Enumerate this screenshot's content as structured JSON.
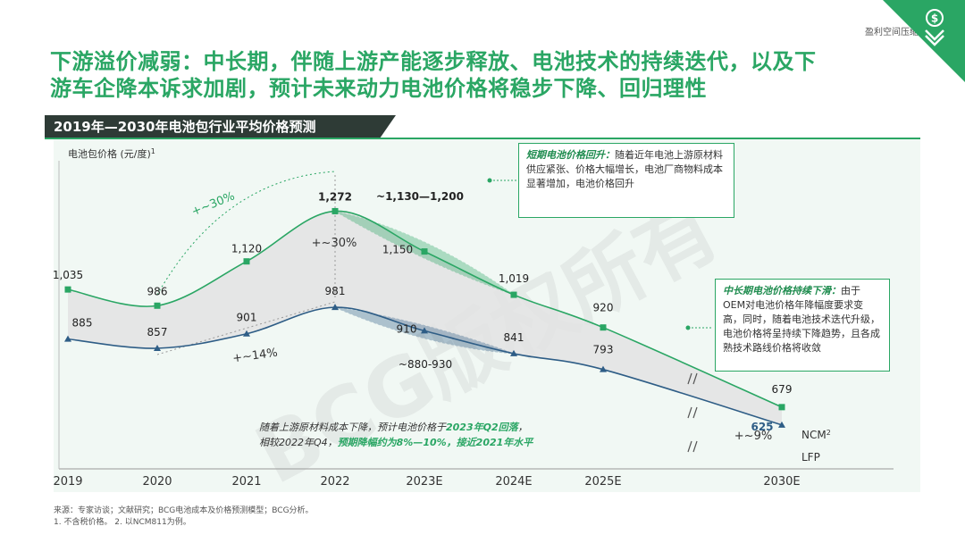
{
  "brand": "盈利空间压缩",
  "headline_line1": "下游溢价减弱：中长期，伴随上游产能逐步释放、电池技术的持续迭代，以及下",
  "headline_line2": "游车企降本诉求加剧，预计未来动力电池价格将稳步下降、回归理性",
  "section_title": "2019年—2030年电池包行业平均价格预测",
  "watermark": "BCG版权所有",
  "colors": {
    "green": "#2aa664",
    "navy": "#2e5d86",
    "dark": "#2e3b36",
    "band": "#e3e3e3"
  },
  "chart_data": {
    "type": "line",
    "ylabel": "电池包价格 (元/度)",
    "ylabel_sup": "1",
    "x": [
      "2019",
      "2020",
      "2021",
      "2022",
      "2023E",
      "2024E",
      "2025E",
      "2030E"
    ],
    "series": [
      {
        "name": "NCM",
        "sup": "2",
        "values": [
          1035,
          986,
          1120,
          1272,
          1150,
          1019,
          920,
          679
        ],
        "labels": [
          "1,035",
          "986",
          "1,120",
          "1,272",
          "1,150",
          "1,019",
          "920",
          "679"
        ]
      },
      {
        "name": "LFP",
        "sup": "",
        "values": [
          885,
          857,
          901,
          981,
          910,
          841,
          793,
          625
        ],
        "labels": [
          "885",
          "857",
          "901",
          "981",
          "910",
          "841",
          "793",
          "625"
        ]
      }
    ],
    "ranges": [
      {
        "series": "NCM",
        "x": "2023E",
        "low": 1130,
        "high": 1200,
        "label": "~1,130—1,200"
      },
      {
        "series": "LFP",
        "x": "2023E",
        "low": 880,
        "high": 930,
        "label": "~880-930"
      }
    ],
    "annotations": [
      {
        "text": "+~30%",
        "note": "NCM 2020→2022"
      },
      {
        "text": "+~30%",
        "note": "spread 2022"
      },
      {
        "text": "+~14%",
        "note": "LFP 2020→2022"
      },
      {
        "text": "+~9%",
        "note": "spread 2030E"
      }
    ]
  },
  "callout_short": {
    "title": "短期电池价格回升：",
    "body": "随着近年电池上游原材料供应紧张、价格大幅增长，电池厂商物料成本显著增加，电池价格回升"
  },
  "callout_long": {
    "title": "中长期电池价格持续下滑：",
    "body": "由于OEM对电池价格年降幅度要求变高，同时，随着电池技术迭代升级，电池价格将呈持续下降趋势，且各成熟技术路线价格将收敛"
  },
  "note": {
    "p1": "随着上游原材料成本下降，预计电池价格于",
    "hl1": "2023年Q2回落",
    "p2": "，",
    "p3": "相较2022年Q4，",
    "hl2": "预期降幅约为8%—10%，接近2021年水平"
  },
  "footer": {
    "source": "来源：专家访谈；文献研究；BCG电池成本及价格预测模型；BCG分析。",
    "notes": "1. 不含税价格。 2. 以NCM811为例。"
  }
}
